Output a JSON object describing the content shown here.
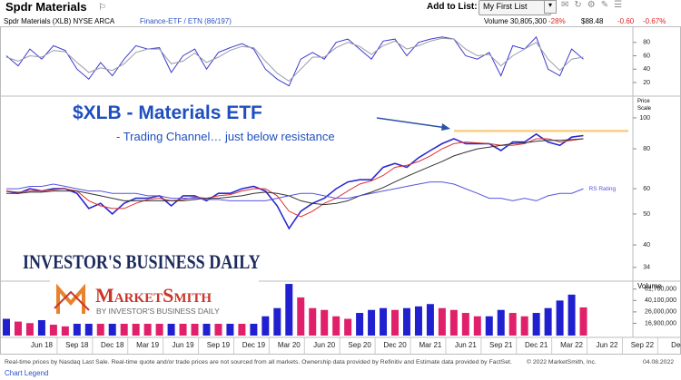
{
  "header": {
    "title": "Spdr Materials",
    "add_to_list": "Add to List:",
    "list": "My First List",
    "info": "Spdr Materials  (XLB) NYSE ARCA",
    "group": "Finance-ETF / ETN (86/197)",
    "volume": "Volume 30,805,300",
    "volume_change": "-28%",
    "price": "$88.48",
    "change": "-0.60",
    "change_pct": "-0.67%"
  },
  "logos": {
    "ibd": "INVESTOR'S BUSINESS DAILY",
    "marketsmith": "MarketSmith",
    "marketsmith_sub": "BY INVESTOR'S BUSINESS DAILY"
  },
  "footer": {
    "disclaimer": "Real-time prices by Nasdaq Last Sale. Real-time quote and/or trade prices are not sourced from all markets. Ownership data provided by Refinitiv and Estimate data provided by FactSet.",
    "copyright": "© 2022 MarketSmith, Inc.",
    "date": "04.08.2022",
    "legend": "Chart Legend"
  },
  "chart_data": [
    {
      "type": "line",
      "ylim": [
        1,
        100
      ],
      "yticks": [
        20,
        40,
        60,
        80
      ],
      "series": [
        {
          "color": "#3b3bd0",
          "values": [
            60,
            45,
            70,
            55,
            75,
            68,
            40,
            25,
            50,
            30,
            55,
            75,
            70,
            72,
            35,
            60,
            70,
            40,
            65,
            72,
            78,
            70,
            40,
            25,
            15,
            55,
            65,
            55,
            80,
            85,
            70,
            55,
            82,
            85,
            60,
            80,
            85,
            88,
            85,
            60,
            55,
            65,
            30,
            75,
            70,
            88,
            40,
            30,
            70,
            55,
            null,
            null,
            null,
            null,
            null,
            null,
            null,
            null
          ]
        },
        {
          "color": "#9a9aa8",
          "values": [
            58,
            52,
            60,
            58,
            68,
            66,
            50,
            35,
            42,
            38,
            48,
            65,
            70,
            70,
            48,
            52,
            64,
            50,
            58,
            68,
            74,
            72,
            52,
            34,
            22,
            40,
            58,
            58,
            72,
            80,
            74,
            62,
            75,
            82,
            70,
            75,
            82,
            86,
            85,
            70,
            60,
            62,
            45,
            60,
            70,
            80,
            55,
            38,
            55,
            58,
            null,
            null,
            null,
            null,
            null,
            null,
            null,
            null
          ]
        }
      ]
    },
    {
      "type": "line",
      "log": true,
      "ylim": [
        30.8,
        116.2
      ],
      "yticks": [
        34,
        40,
        50,
        60,
        80,
        100
      ],
      "y_axis_label": "Price Scale",
      "title": "$XLB - Materials ETF",
      "annotation": "- Trading Channel… just below resistance",
      "resistance": 91,
      "resistance_color": "#f7cf86",
      "series": [
        {
          "color": "#2a2acf",
          "values": [
            59,
            58,
            60,
            59,
            60,
            60,
            58,
            52,
            54,
            50,
            54,
            56,
            56,
            57,
            53,
            57,
            57,
            55,
            58,
            58,
            60,
            61,
            59,
            53,
            45,
            51,
            54,
            56,
            60,
            63,
            64,
            64,
            70,
            72,
            70,
            75,
            79,
            83,
            86,
            83,
            83,
            83,
            79,
            84,
            84,
            89,
            84,
            82,
            87,
            88,
            null,
            null,
            null,
            null,
            null,
            null,
            null,
            null
          ]
        },
        {
          "color": "#e03030",
          "values": [
            59,
            58.5,
            59,
            59,
            59.5,
            60,
            59,
            55,
            53,
            52,
            52,
            54,
            55.5,
            56,
            55,
            55.5,
            56.5,
            56,
            57,
            57.5,
            59,
            60,
            60,
            57,
            51,
            49,
            51,
            54,
            56,
            59,
            62,
            63.5,
            66,
            70,
            71,
            73,
            76,
            80,
            83,
            84,
            83.5,
            83,
            82,
            82,
            83,
            86,
            86,
            84,
            85,
            86,
            null,
            null,
            null,
            null,
            null,
            null,
            null,
            null
          ]
        },
        {
          "color": "#333333",
          "values": [
            58,
            58,
            58.5,
            58.5,
            59,
            59,
            59,
            58,
            57,
            56,
            55,
            55,
            55,
            55,
            55,
            55,
            55.5,
            56,
            56,
            56.5,
            57,
            58,
            58.5,
            58,
            57,
            55,
            54,
            53.5,
            54,
            55,
            57,
            58.5,
            60.5,
            63,
            65.5,
            68,
            70.5,
            73,
            76,
            78,
            80,
            81,
            82,
            83,
            83.5,
            84.5,
            85,
            85,
            85.5,
            86,
            null,
            null,
            null,
            null,
            null,
            null,
            null,
            null
          ]
        },
        {
          "name": "RS Rating",
          "color": "#5555dd",
          "values": [
            60,
            60,
            61,
            61,
            62,
            61,
            60,
            59,
            59,
            58,
            58,
            58,
            57,
            57,
            56,
            56,
            56,
            55.5,
            55.5,
            55,
            55,
            55,
            55,
            56,
            57,
            58,
            58,
            57,
            56,
            56,
            57,
            58,
            59,
            60,
            61,
            62,
            63,
            63,
            62,
            60,
            58,
            56,
            56,
            55,
            56,
            55,
            57,
            58,
            58,
            60,
            null,
            null,
            null,
            null,
            null,
            null,
            null,
            null
          ]
        }
      ]
    },
    {
      "type": "bar",
      "log": true,
      "y_axis_label": "Volume",
      "ylim": [
        10600000,
        77800000
      ],
      "yticks": [
        {
          "value": 16900000,
          "label": "16,900,000"
        },
        {
          "value": 26000000,
          "label": "26,000,000"
        },
        {
          "value": 40100000,
          "label": "40,100,000"
        },
        {
          "value": 61700000,
          "label": "61,700,000"
        }
      ],
      "up_color": "#2020d0",
      "down_color": "#e0206a",
      "categories": [
        null,
        null,
        null,
        "Jun 18",
        null,
        null,
        "Sep 18",
        null,
        null,
        "Dec 18",
        null,
        null,
        "Mar 19",
        null,
        null,
        "Jun 19",
        null,
        null,
        "Sep 19",
        null,
        null,
        "Dec 19",
        null,
        null,
        "Mar 20",
        null,
        null,
        "Jun 20",
        null,
        null,
        "Sep 20",
        null,
        null,
        "Dec 20",
        null,
        null,
        "Mar 21",
        null,
        null,
        "Jun 21",
        null,
        null,
        "Sep 21",
        null,
        null,
        "Dec 21",
        null,
        null,
        "Mar 22",
        null,
        null,
        "Jun 22",
        null,
        null,
        "Sep 22",
        null,
        null,
        "Dec"
      ],
      "values": [
        20000000,
        18000000,
        17000000,
        19000000,
        16000000,
        15000000,
        17000000,
        30000000,
        25000000,
        35000000,
        30000000,
        25000000,
        22000000,
        20000000,
        25000000,
        22000000,
        18000000,
        22000000,
        20000000,
        20000000,
        18000000,
        20000000,
        22000000,
        30000000,
        75000000,
        45000000,
        30000000,
        28000000,
        22000000,
        20000000,
        25000000,
        28000000,
        30000000,
        28000000,
        30000000,
        32000000,
        35000000,
        30000000,
        28000000,
        25000000,
        22000000,
        22000000,
        28000000,
        25000000,
        22000000,
        25000000,
        30000000,
        40000000,
        50000000,
        30805300,
        null,
        null,
        null,
        null,
        null,
        null,
        null,
        null
      ]
    }
  ]
}
